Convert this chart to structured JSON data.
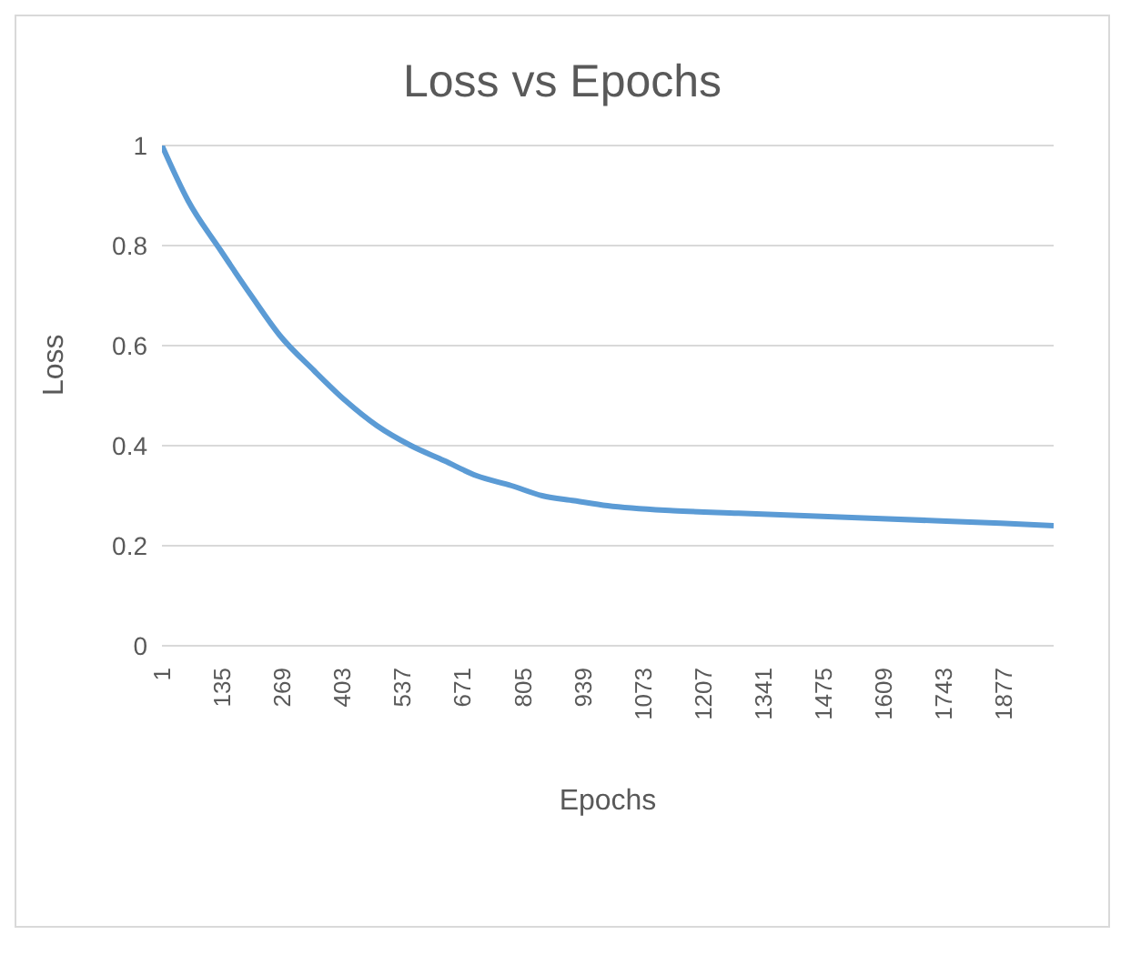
{
  "chart_data": {
    "type": "line",
    "title": "Loss vs Epochs",
    "xlabel": "Epochs",
    "ylabel": "Loss",
    "x": [
      1,
      59,
      132,
      200,
      264,
      340,
      410,
      480,
      556,
      630,
      702,
      780,
      848,
      920,
      994,
      1140,
      1286,
      1432,
      1578,
      1724,
      1870,
      1988
    ],
    "series": [
      {
        "color": "#5b9bd5",
        "values": [
          1.0,
          0.89,
          0.79,
          0.7,
          0.62,
          0.55,
          0.49,
          0.44,
          0.4,
          0.37,
          0.34,
          0.32,
          0.3,
          0.29,
          0.28,
          0.27,
          0.265,
          0.26,
          0.255,
          0.25,
          0.245,
          0.24
        ]
      }
    ],
    "xlim": [
      1,
      1988
    ],
    "xticks": [
      1,
      135,
      269,
      403,
      537,
      671,
      805,
      939,
      1073,
      1207,
      1341,
      1475,
      1609,
      1743,
      1877
    ],
    "ylim": [
      0,
      1
    ],
    "yticks": [
      0,
      0.2,
      0.4,
      0.6,
      0.8,
      1
    ],
    "grid": "y",
    "legend": false,
    "marker": "none",
    "line_style": "solid"
  }
}
